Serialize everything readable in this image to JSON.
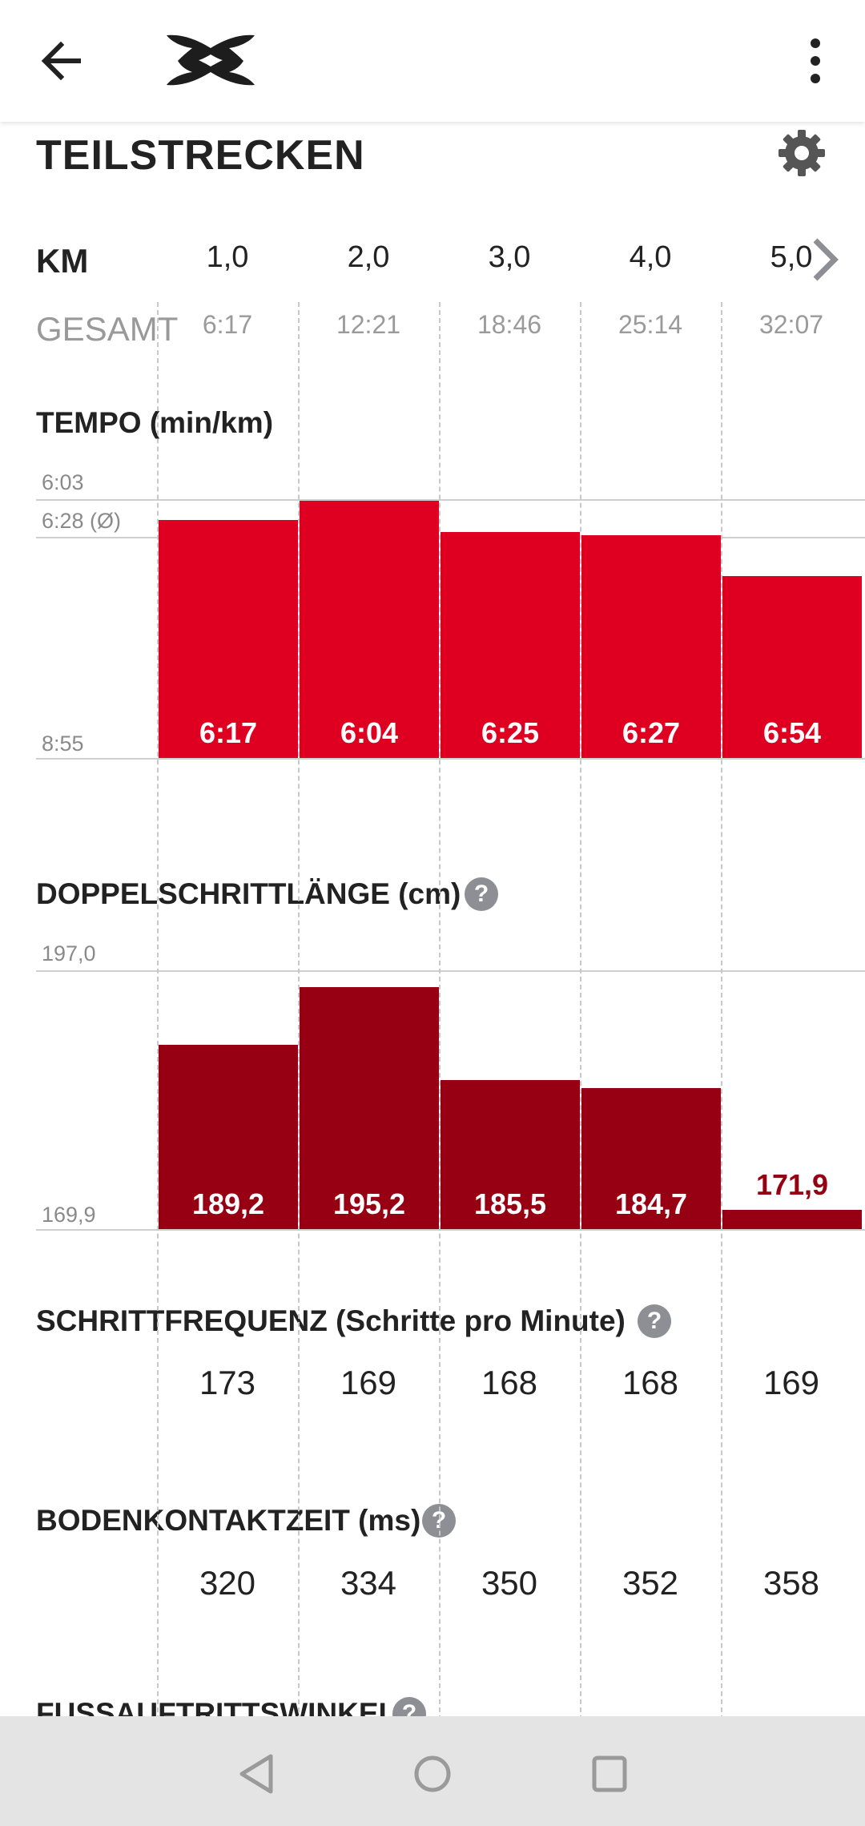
{
  "header": {
    "back_icon": "arrow-left-icon",
    "logo": "under-armour-logo",
    "menu_icon": "more-vertical-icon"
  },
  "section": {
    "title": "TEILSTRECKEN",
    "settings_icon": "gear-icon"
  },
  "splits": {
    "km_label": "KM",
    "total_label": "GESAMT",
    "km": [
      "1,0",
      "2,0",
      "3,0",
      "4,0",
      "5,0"
    ],
    "total": [
      "6:17",
      "12:21",
      "18:46",
      "25:14",
      "32:07"
    ]
  },
  "tempo": {
    "title": "TEMPO (min/km)",
    "axis_top": "6:03",
    "axis_avg": "6:28 (Ø)",
    "axis_bottom": "8:55",
    "labels": [
      "6:17",
      "6:04",
      "6:25",
      "6:27",
      "6:54"
    ],
    "color": "#df0021"
  },
  "stride": {
    "title": "DOPPELSCHRITTLÄNGE (cm)",
    "axis_top": "197,0",
    "axis_bottom": "169,9",
    "labels": [
      "189,2",
      "195,2",
      "185,5",
      "184,7",
      "171,9"
    ],
    "color": "#960012"
  },
  "cadence": {
    "title": "SCHRITTFREQUENZ (Schritte pro Minute)",
    "values": [
      "173",
      "169",
      "168",
      "168",
      "169"
    ]
  },
  "ground_contact": {
    "title": "BODENKONTAKTZEIT (ms)",
    "values": [
      "320",
      "334",
      "350",
      "352",
      "358"
    ]
  },
  "foot_strike": {
    "title": "FUSSAUFTRITTSWINKEL"
  },
  "help_label": "?",
  "chart_data": [
    {
      "type": "bar",
      "title": "TEMPO (min/km)",
      "categories": [
        "1,0",
        "2,0",
        "3,0",
        "4,0",
        "5,0"
      ],
      "values": [
        6.283,
        6.067,
        6.417,
        6.45,
        6.9
      ],
      "value_labels": [
        "6:17",
        "6:04",
        "6:25",
        "6:27",
        "6:54"
      ],
      "ylim": [
        8.917,
        6.05
      ],
      "avg": 6.467,
      "inverted": true
    },
    {
      "type": "bar",
      "title": "DOPPELSCHRITTLÄNGE (cm)",
      "categories": [
        "1,0",
        "2,0",
        "3,0",
        "4,0",
        "5,0"
      ],
      "values": [
        189.2,
        195.2,
        185.5,
        184.7,
        171.9
      ],
      "ylim": [
        169.9,
        197.0
      ]
    }
  ]
}
